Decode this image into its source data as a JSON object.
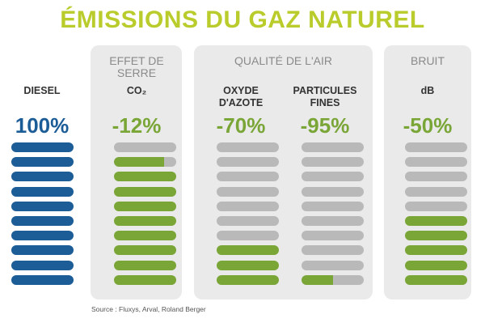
{
  "title": "ÉMISSIONS DU GAZ NATUREL",
  "source": "Source : Fluxys, Arval, Roland Berger",
  "colors": {
    "title": "#b9cc2b",
    "blue": "#1d5d97",
    "green": "#7aa637",
    "gray": "#b9b9b9",
    "panel": "#eaeaea",
    "group_title": "#8a8a8a"
  },
  "groups": [
    {
      "label": "EFFET DE SERRE"
    },
    {
      "label": "QUALITÉ DE L'AIR"
    },
    {
      "label": "BRUIT"
    }
  ],
  "chart_data": {
    "type": "bar",
    "segments_per_column": 10,
    "series": [
      {
        "label": "DIESEL",
        "value": "100%",
        "reduction": 0,
        "filled_segments": 10,
        "color": "blue"
      },
      {
        "label": "CO₂",
        "value": "-12%",
        "reduction": 12,
        "filled_segments": 8.8,
        "color": "green"
      },
      {
        "label": "OXYDE D'AZOTE",
        "value": "-70%",
        "reduction": 70,
        "filled_segments": 3,
        "color": "green"
      },
      {
        "label": "PARTICULES FINES",
        "value": "-95%",
        "reduction": 95,
        "filled_segments": 0.5,
        "color": "green"
      },
      {
        "label": "dB",
        "value": "-50%",
        "reduction": 50,
        "filled_segments": 5,
        "color": "green"
      }
    ]
  }
}
